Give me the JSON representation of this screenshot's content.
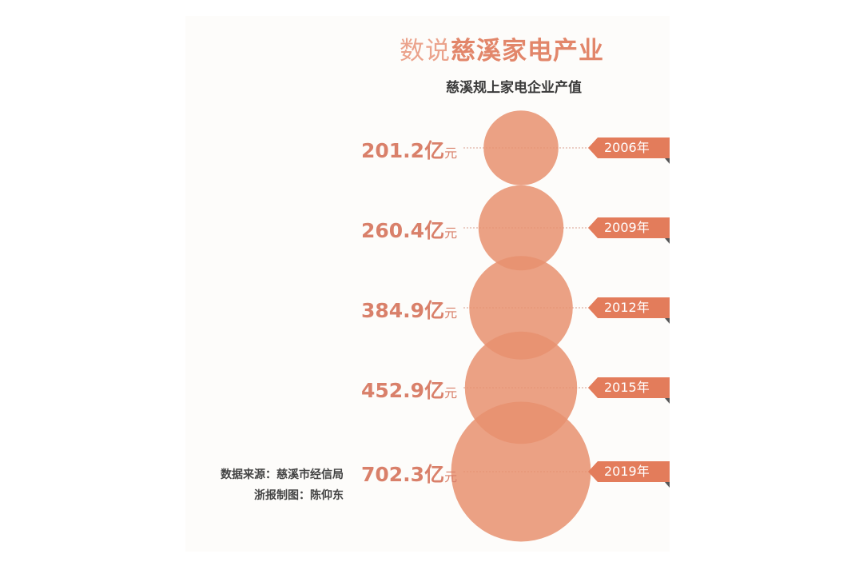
{
  "chart_data": {
    "type": "bubble",
    "title_prefix": "数说",
    "title_main": "慈溪家电产业",
    "subtitle": "慈溪规上家电企业产值",
    "unit": "亿元",
    "categories": [
      "2006年",
      "2009年",
      "2012年",
      "2015年",
      "2019年"
    ],
    "values": [
      201.2,
      260.4,
      384.9,
      452.9,
      702.3
    ],
    "value_labels": [
      "201.2",
      "260.4",
      "384.9",
      "452.9",
      "702.3"
    ],
    "unit_parts": [
      "亿",
      "元"
    ],
    "bubble_color": "#e8906f",
    "tag_color": "#e37c5b"
  },
  "notes": {
    "source": "数据来源：慈溪市经信局",
    "credit": "浙报制图：陈仰东"
  }
}
